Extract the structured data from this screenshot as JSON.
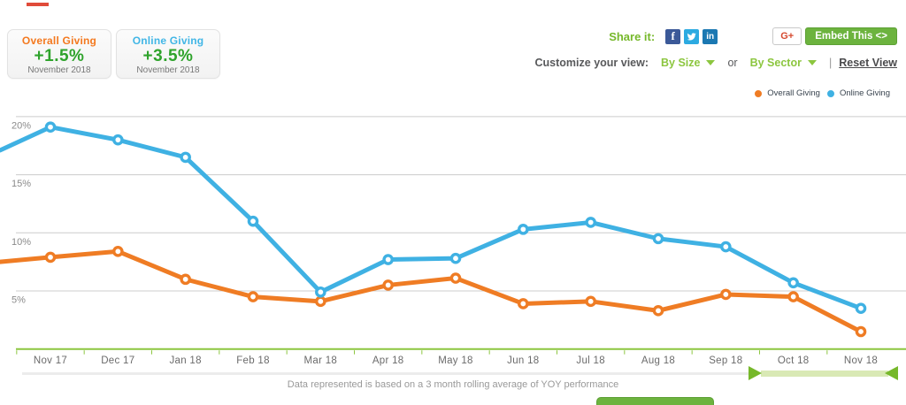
{
  "cards": [
    {
      "title": "Overall Giving",
      "value": "+1.5%",
      "period": "November 2018",
      "title_color": "#f4791f"
    },
    {
      "title": "Online Giving",
      "value": "+3.5%",
      "period": "November 2018",
      "title_color": "#41b6e6"
    }
  ],
  "share": {
    "label": "Share it:",
    "icons": [
      "facebook-icon",
      "twitter-icon",
      "linkedin-icon"
    ],
    "facebook_glyph": "f",
    "linkedin_glyph": "in",
    "gplus_label": "G+",
    "embed_label": "Embed This <>"
  },
  "customize": {
    "label": "Customize your view:",
    "by_size": "By Size",
    "or": "or",
    "by_sector": "By Sector",
    "separator": "|",
    "reset": "Reset View"
  },
  "legend": [
    {
      "label": "Overall Giving",
      "color": "#ef7c24"
    },
    {
      "label": "Online Giving",
      "color": "#3fb1e3"
    }
  ],
  "footnote": "Data represented is based on a 3 month rolling average of YOY performance",
  "colors": {
    "overall_orange": "#ef7c24",
    "online_blue": "#3fb1e3",
    "button_green": "#6cb33e",
    "lime_green": "#8cc63f",
    "value_green": "#2fa32c",
    "slider_green": "#76b82a",
    "gridline_gray": "#cccccc"
  },
  "chart_data": {
    "type": "line",
    "x": [
      "Nov 17",
      "Dec 17",
      "Jan 18",
      "Feb 18",
      "Mar 18",
      "Apr 18",
      "May 18",
      "Jun 18",
      "Jul 18",
      "Aug 18",
      "Sep 18",
      "Oct 18",
      "Nov 18"
    ],
    "series": [
      {
        "name": "Overall Giving",
        "color": "#ef7c24",
        "values": [
          7.9,
          8.4,
          6.0,
          4.5,
          4.1,
          5.5,
          6.1,
          3.9,
          4.1,
          3.3,
          4.7,
          4.5,
          1.5
        ],
        "left_edge_value": 7.5
      },
      {
        "name": "Online Giving",
        "color": "#3fb1e3",
        "values": [
          19.1,
          18.0,
          16.5,
          11.0,
          4.9,
          7.7,
          7.8,
          10.3,
          10.9,
          9.5,
          8.8,
          5.7,
          3.5
        ],
        "left_edge_value": 17.1
      }
    ],
    "y_ticks": [
      5,
      10,
      15,
      20
    ],
    "ylabel_ticks": [
      "5%",
      "10%",
      "15%",
      "20%"
    ],
    "ylim": [
      0,
      21
    ],
    "unit": "%",
    "grid": true,
    "legend_position": "top-right",
    "marker": "open-circle"
  }
}
